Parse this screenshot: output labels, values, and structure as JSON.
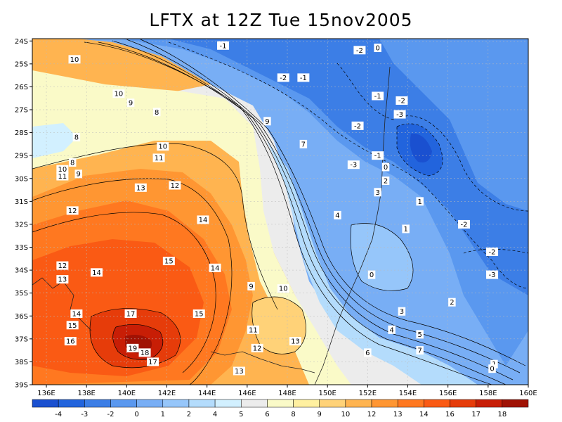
{
  "chart_data": {
    "type": "heatmap",
    "title": "LFTX at 12Z Tue 15nov2005",
    "x_ticks": [
      "136E",
      "138E",
      "140E",
      "142E",
      "144E",
      "146E",
      "148E",
      "150E",
      "152E",
      "154E",
      "156E",
      "158E",
      "160E"
    ],
    "x_values": [
      136,
      138,
      140,
      142,
      144,
      146,
      148,
      150,
      152,
      154,
      156,
      158,
      160
    ],
    "y_ticks": [
      "24S",
      "25S",
      "26S",
      "27S",
      "28S",
      "29S",
      "30S",
      "31S",
      "32S",
      "33S",
      "34S",
      "35S",
      "36S",
      "37S",
      "38S",
      "39S"
    ],
    "y_values": [
      -24,
      -25,
      -26,
      -27,
      -28,
      -29,
      -30,
      -31,
      -32,
      -33,
      -34,
      -35,
      -36,
      -37,
      -38,
      -39
    ],
    "xlim": [
      135.3,
      160
    ],
    "ylim": [
      -39,
      -23.9
    ],
    "grid": true,
    "colorbar": {
      "labels": [
        "-4",
        "-3",
        "-2",
        "0",
        "1",
        "2",
        "4",
        "5",
        "6",
        "8",
        "9",
        "10",
        "12",
        "13",
        "14",
        "16",
        "17",
        "18"
      ],
      "colors": [
        "#1a50d0",
        "#2264dd",
        "#3c7ee6",
        "#5a98ef",
        "#78aef5",
        "#96c6fa",
        "#b4dcfc",
        "#d2f0ff",
        "#ececec",
        "#fafac8",
        "#fff0a0",
        "#ffd278",
        "#ffb450",
        "#ff9632",
        "#ff7820",
        "#fa5a14",
        "#e63c0a",
        "#c81e06",
        "#a01204"
      ]
    },
    "contour_labels": [
      {
        "v": "-1",
        "lon": 144.8,
        "lat": -24.2
      },
      {
        "v": "-2",
        "lon": 151.6,
        "lat": -24.4
      },
      {
        "v": "0",
        "lon": 152.5,
        "lat": -24.3
      },
      {
        "v": "-2",
        "lon": 147.8,
        "lat": -25.6
      },
      {
        "v": "-1",
        "lon": 148.8,
        "lat": -25.6
      },
      {
        "v": "-1",
        "lon": 152.5,
        "lat": -26.4
      },
      {
        "v": "-2",
        "lon": 153.7,
        "lat": -26.6
      },
      {
        "v": "-3",
        "lon": 153.6,
        "lat": -27.2
      },
      {
        "v": "-2",
        "lon": 151.5,
        "lat": -27.7
      },
      {
        "v": "-1",
        "lon": 152.5,
        "lat": -29.0
      },
      {
        "v": "-3",
        "lon": 151.3,
        "lat": -29.4
      },
      {
        "v": "0",
        "lon": 152.9,
        "lat": -29.5
      },
      {
        "v": "2",
        "lon": 152.9,
        "lat": -30.1
      },
      {
        "v": "3",
        "lon": 152.5,
        "lat": -30.6
      },
      {
        "v": "1",
        "lon": 154.6,
        "lat": -31.0
      },
      {
        "v": "4",
        "lon": 150.5,
        "lat": -31.6
      },
      {
        "v": "1",
        "lon": 153.9,
        "lat": -32.2
      },
      {
        "v": "-2",
        "lon": 156.8,
        "lat": -32.0
      },
      {
        "v": "-2",
        "lon": 158.2,
        "lat": -33.2
      },
      {
        "v": "-3",
        "lon": 158.2,
        "lat": -34.2
      },
      {
        "v": "0",
        "lon": 152.2,
        "lat": -34.2
      },
      {
        "v": "2",
        "lon": 156.2,
        "lat": -35.4
      },
      {
        "v": "3",
        "lon": 153.7,
        "lat": -35.8
      },
      {
        "v": "4",
        "lon": 153.2,
        "lat": -36.6
      },
      {
        "v": "5",
        "lon": 154.6,
        "lat": -36.8
      },
      {
        "v": "6",
        "lon": 152.0,
        "lat": -37.6
      },
      {
        "v": "7",
        "lon": 154.6,
        "lat": -37.5
      },
      {
        "v": "1",
        "lon": 158.3,
        "lat": -38.1
      },
      {
        "v": "0",
        "lon": 158.2,
        "lat": -38.3
      },
      {
        "v": "10",
        "lon": 137.4,
        "lat": -24.8
      },
      {
        "v": "10",
        "lon": 139.6,
        "lat": -26.3
      },
      {
        "v": "9",
        "lon": 140.2,
        "lat": -26.7
      },
      {
        "v": "8",
        "lon": 141.5,
        "lat": -27.1
      },
      {
        "v": "9",
        "lon": 147.0,
        "lat": -27.5
      },
      {
        "v": "8",
        "lon": 137.5,
        "lat": -28.2
      },
      {
        "v": "7",
        "lon": 148.8,
        "lat": -28.5
      },
      {
        "v": "10",
        "lon": 141.8,
        "lat": -28.6
      },
      {
        "v": "11",
        "lon": 141.6,
        "lat": -29.1
      },
      {
        "v": "8",
        "lon": 137.3,
        "lat": -29.3
      },
      {
        "v": "10",
        "lon": 136.8,
        "lat": -29.6
      },
      {
        "v": "9",
        "lon": 137.6,
        "lat": -29.8
      },
      {
        "v": "11",
        "lon": 136.8,
        "lat": -29.9
      },
      {
        "v": "13",
        "lon": 140.7,
        "lat": -30.4
      },
      {
        "v": "12",
        "lon": 142.4,
        "lat": -30.3
      },
      {
        "v": "12",
        "lon": 137.3,
        "lat": -31.4
      },
      {
        "v": "14",
        "lon": 143.8,
        "lat": -31.8
      },
      {
        "v": "15",
        "lon": 142.1,
        "lat": -33.6
      },
      {
        "v": "14",
        "lon": 144.4,
        "lat": -33.9
      },
      {
        "v": "12",
        "lon": 136.8,
        "lat": -33.8
      },
      {
        "v": "14",
        "lon": 138.5,
        "lat": -34.1
      },
      {
        "v": "13",
        "lon": 136.8,
        "lat": -34.4
      },
      {
        "v": "9",
        "lon": 146.2,
        "lat": -34.7
      },
      {
        "v": "10",
        "lon": 147.8,
        "lat": -34.8
      },
      {
        "v": "14",
        "lon": 137.5,
        "lat": -35.9
      },
      {
        "v": "17",
        "lon": 140.2,
        "lat": -35.9
      },
      {
        "v": "15",
        "lon": 143.6,
        "lat": -35.9
      },
      {
        "v": "15",
        "lon": 137.3,
        "lat": -36.4
      },
      {
        "v": "11",
        "lon": 146.3,
        "lat": -36.6
      },
      {
        "v": "16",
        "lon": 137.2,
        "lat": -37.1
      },
      {
        "v": "13",
        "lon": 148.4,
        "lat": -37.1
      },
      {
        "v": "19",
        "lon": 140.3,
        "lat": -37.4
      },
      {
        "v": "18",
        "lon": 140.9,
        "lat": -37.6
      },
      {
        "v": "12",
        "lon": 146.5,
        "lat": -37.4
      },
      {
        "v": "17",
        "lon": 141.3,
        "lat": -38.0
      },
      {
        "v": "13",
        "lon": 145.6,
        "lat": -38.4
      }
    ]
  }
}
